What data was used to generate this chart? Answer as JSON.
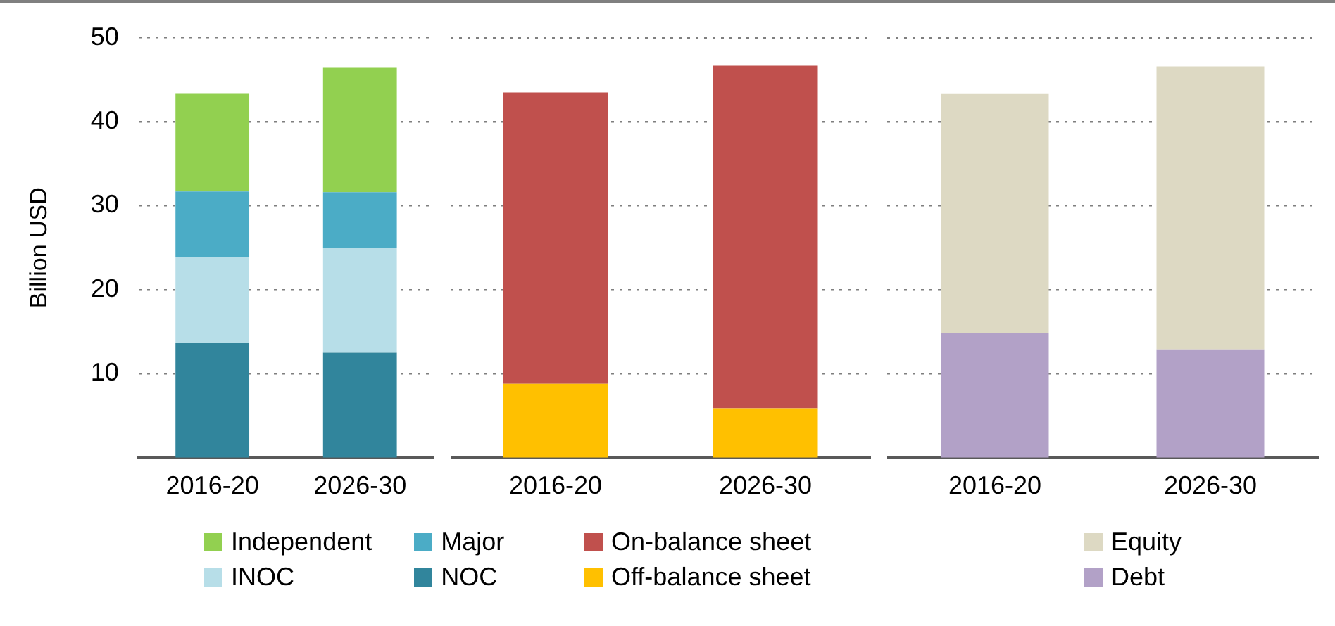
{
  "chart_data": [
    {
      "type": "bar",
      "stacked": true,
      "ylabel": "Billion USD",
      "categories": [
        "2016-20",
        "2026-30"
      ],
      "series": [
        {
          "name": "NOC",
          "color": "#31859c",
          "values": [
            13.7,
            12.5
          ]
        },
        {
          "name": "INOC",
          "color": "#b7dee8",
          "values": [
            10.2,
            12.5
          ]
        },
        {
          "name": "Major",
          "color": "#4bacc6",
          "values": [
            7.8,
            6.6
          ]
        },
        {
          "name": "Independent",
          "color": "#92d050",
          "values": [
            11.7,
            14.9
          ]
        }
      ],
      "ylim": [
        0,
        50
      ],
      "yticks": [
        10,
        20,
        30,
        40,
        50
      ],
      "grid": "y",
      "legend": "bottom"
    },
    {
      "type": "bar",
      "stacked": true,
      "categories": [
        "2016-20",
        "2026-30"
      ],
      "series": [
        {
          "name": "Off-balance sheet",
          "color": "#ffc000",
          "values": [
            8.8,
            5.9
          ]
        },
        {
          "name": "On-balance sheet",
          "color": "#c0504d",
          "values": [
            34.7,
            40.8
          ]
        }
      ],
      "ylim": [
        0,
        50
      ],
      "yticks": [
        10,
        20,
        30,
        40,
        50
      ],
      "grid": "y",
      "legend": "bottom",
      "tick_labels": "x"
    },
    {
      "type": "bar",
      "stacked": true,
      "categories": [
        "2016-20",
        "2026-30"
      ],
      "series": [
        {
          "name": "Debt",
          "color": "#b2a1c7",
          "values": [
            14.9,
            12.9
          ]
        },
        {
          "name": "Equity",
          "color": "#ddd9c3",
          "values": [
            28.5,
            33.7
          ]
        }
      ],
      "ylim": [
        0,
        50
      ],
      "yticks": [
        10,
        20,
        30,
        40,
        50
      ],
      "grid": "y",
      "legend": "bottom",
      "tick_labels": "x"
    }
  ]
}
